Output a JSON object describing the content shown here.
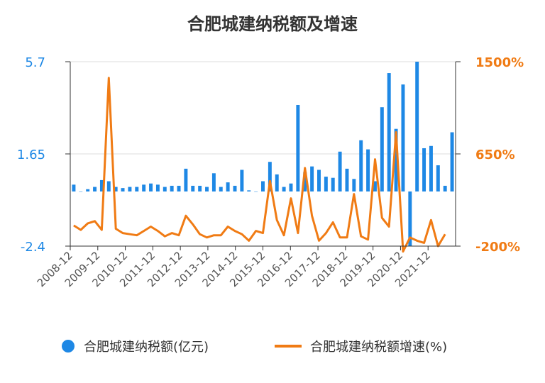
{
  "chart_data": {
    "type": "bar+line",
    "title": "合肥城建纳税额及增速",
    "x_tick_labels": [
      "2008-12",
      "2009-12",
      "2010-12",
      "2011-12",
      "2012-12",
      "2013-12",
      "2014-12",
      "2015-12",
      "2016-12",
      "2017-12",
      "2018-12",
      "2019-12",
      "2020-12",
      "2021-12"
    ],
    "left_axis": {
      "ylim": [
        -2.4,
        5.7
      ],
      "ticks": [
        "5.7",
        "1.65",
        "-2.4"
      ],
      "color": "#1e88e5"
    },
    "right_axis": {
      "ylim": [
        -200,
        1500
      ],
      "ticks": [
        "1500%",
        "650%",
        "-200%"
      ],
      "color": "#f07b14"
    },
    "series": [
      {
        "name": "合肥城建纳税额(亿元)",
        "type": "bar",
        "axis": "left",
        "color": "#1e88e5",
        "values": [
          0.3,
          0.0,
          0.1,
          0.2,
          0.5,
          0.45,
          0.2,
          0.15,
          0.2,
          0.2,
          0.3,
          0.35,
          0.3,
          0.2,
          0.25,
          0.25,
          1.0,
          0.25,
          0.25,
          0.2,
          0.8,
          0.2,
          0.4,
          0.25,
          0.95,
          0.05,
          0.0,
          0.45,
          1.3,
          0.75,
          0.2,
          0.35,
          3.8,
          0.85,
          1.1,
          0.95,
          0.65,
          0.6,
          1.75,
          1.0,
          0.55,
          2.25,
          1.85,
          0.45,
          3.7,
          5.2,
          2.75,
          4.7,
          -2.4,
          5.7,
          1.9,
          2.0,
          1.15,
          0.25,
          2.6
        ]
      },
      {
        "name": "合肥城建纳税额增速(%)",
        "type": "line",
        "axis": "right",
        "color": "#f07b14",
        "values": [
          -10,
          -50,
          10,
          30,
          -50,
          1350,
          -40,
          -80,
          -90,
          -100,
          -60,
          -20,
          -60,
          -110,
          -80,
          -100,
          80,
          0,
          -90,
          -120,
          -100,
          -100,
          -20,
          -60,
          -90,
          -150,
          -60,
          -80,
          400,
          40,
          -100,
          240,
          -80,
          520,
          80,
          -150,
          -80,
          20,
          -120,
          -120,
          280,
          -110,
          -140,
          600,
          60,
          -20,
          850,
          -250,
          -120,
          -150,
          -170,
          40,
          -200,
          -90
        ]
      }
    ],
    "legend": {
      "placement": "bottom",
      "bar_label": "合肥城建纳税额(亿元)",
      "line_label": "合肥城建纳税额增速(%)"
    }
  }
}
